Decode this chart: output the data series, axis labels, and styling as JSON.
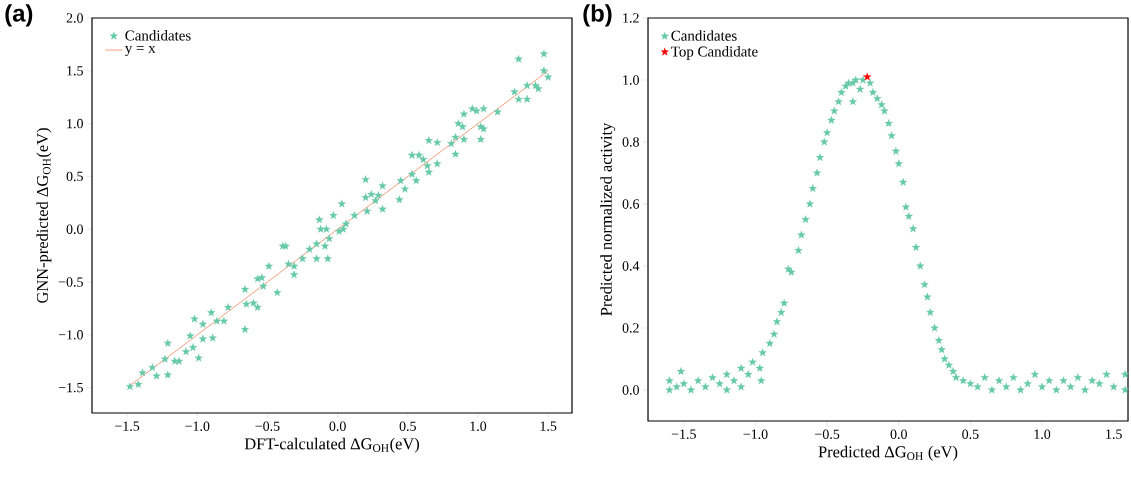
{
  "chart_data": [
    {
      "type": "scatter",
      "annotations": [
        "(a)"
      ],
      "xlabel": "DFT-calculated ΔG$_{OH}$(eV)",
      "ylabel": "GNN-predicted ΔG$_{OH}$(eV)",
      "xlim": [
        -1.75,
        1.67
      ],
      "ylim": [
        -1.74,
        2.0
      ],
      "xticks": [
        {
          "value": -1.5,
          "label": "−1.5"
        },
        {
          "value": -1.0,
          "label": "−1.0"
        },
        {
          "value": -0.5,
          "label": "−0.5"
        },
        {
          "value": 0.0,
          "label": "0.0"
        },
        {
          "value": 0.5,
          "label": "0.5"
        },
        {
          "value": 1.0,
          "label": "1.0"
        },
        {
          "value": 1.5,
          "label": "1.5"
        }
      ],
      "yticks": [
        {
          "value": -1.5,
          "label": "−1.5"
        },
        {
          "value": -1.0,
          "label": "−1.0"
        },
        {
          "value": -0.5,
          "label": "−0.5"
        },
        {
          "value": 0.0,
          "label": "0.0"
        },
        {
          "value": 0.5,
          "label": "0.5"
        },
        {
          "value": 1.0,
          "label": "1.0"
        },
        {
          "value": 1.5,
          "label": "1.5"
        },
        {
          "value": 2.0,
          "label": "2.0"
        }
      ],
      "legend": "top left",
      "marker": "star",
      "series": [
        {
          "name": "Candidates",
          "color": "#66c9a8",
          "x": [
            -1.48,
            -1.42,
            -1.39,
            -1.32,
            -1.29,
            -1.23,
            -1.21,
            -1.21,
            -1.16,
            -1.13,
            -1.08,
            -1.05,
            -1.03,
            -1.02,
            -0.99,
            -0.96,
            -0.96,
            -0.9,
            -0.89,
            -0.86,
            -0.81,
            -0.78,
            -0.66,
            -0.66,
            -0.65,
            -0.6,
            -0.57,
            -0.57,
            -0.53,
            -0.54,
            -0.49,
            -0.43,
            -0.39,
            -0.37,
            -0.35,
            -0.31,
            -0.31,
            -0.25,
            -0.2,
            -0.15,
            -0.15,
            -0.13,
            -0.12,
            -0.08,
            -0.09,
            -0.07,
            -0.06,
            -0.03,
            0.01,
            0.04,
            0.06,
            0.03,
            0.12,
            0.2,
            0.2,
            0.21,
            0.24,
            0.27,
            0.29,
            0.32,
            0.32,
            0.44,
            0.45,
            0.48,
            0.53,
            0.53,
            0.56,
            0.58,
            0.61,
            0.64,
            0.65,
            0.65,
            0.71,
            0.71,
            0.81,
            0.84,
            0.84,
            0.86,
            0.89,
            0.9,
            0.9,
            0.96,
            0.99,
            1.02,
            1.02,
            1.04,
            1.04,
            1.14,
            1.26,
            1.29,
            1.29,
            1.35,
            1.35,
            1.41,
            1.43,
            1.47,
            1.47,
            1.5
          ],
          "values": [
            -1.49,
            -1.47,
            -1.36,
            -1.31,
            -1.39,
            -1.23,
            -1.08,
            -1.38,
            -1.25,
            -1.25,
            -1.16,
            -1.01,
            -1.12,
            -0.85,
            -1.22,
            -1.04,
            -0.9,
            -0.79,
            -1.03,
            -0.87,
            -0.87,
            -0.74,
            -0.57,
            -0.95,
            -0.71,
            -0.7,
            -0.74,
            -0.47,
            -0.54,
            -0.46,
            -0.35,
            -0.6,
            -0.16,
            -0.16,
            -0.33,
            -0.35,
            -0.43,
            -0.28,
            -0.19,
            -0.14,
            -0.28,
            0.09,
            0.0,
            0.0,
            -0.16,
            -0.28,
            -0.09,
            0.13,
            -0.02,
            0.0,
            0.05,
            0.24,
            0.13,
            0.47,
            0.3,
            0.17,
            0.33,
            0.27,
            0.32,
            0.41,
            0.19,
            0.28,
            0.46,
            0.38,
            0.52,
            0.7,
            0.46,
            0.7,
            0.66,
            0.6,
            0.54,
            0.84,
            0.82,
            0.62,
            0.81,
            0.87,
            0.71,
            1.0,
            0.97,
            1.09,
            0.85,
            1.14,
            1.12,
            0.97,
            0.85,
            1.14,
            0.95,
            1.11,
            1.3,
            1.61,
            1.23,
            1.23,
            1.36,
            1.36,
            1.33,
            1.66,
            1.5,
            1.44
          ]
        },
        {
          "name": "y = x",
          "type": "line",
          "marker": "none",
          "color": "#f4a07c",
          "x": [
            -1.48,
            1.5
          ],
          "values": [
            -1.48,
            1.5
          ]
        }
      ]
    },
    {
      "type": "scatter",
      "annotations": [
        "(b)"
      ],
      "xlabel": "Predicted ΔG$_{OH}$ (eV)",
      "ylabel": "Predicted normalized activity",
      "xlim": [
        -1.75,
        1.6
      ],
      "ylim": [
        -0.1,
        1.2
      ],
      "xticks": [
        {
          "value": -1.5,
          "label": "−1.5"
        },
        {
          "value": -1.0,
          "label": "−1.0"
        },
        {
          "value": -0.5,
          "label": "−0.5"
        },
        {
          "value": 0.0,
          "label": "0.0"
        },
        {
          "value": 0.5,
          "label": "0.5"
        },
        {
          "value": 1.0,
          "label": "1.0"
        },
        {
          "value": 1.5,
          "label": "1.5"
        }
      ],
      "yticks": [
        {
          "value": 0.0,
          "label": "0.0"
        },
        {
          "value": 0.2,
          "label": "0.2"
        },
        {
          "value": 0.4,
          "label": "0.4"
        },
        {
          "value": 0.6,
          "label": "0.6"
        },
        {
          "value": 0.8,
          "label": "0.8"
        },
        {
          "value": 1.0,
          "label": "1.0"
        },
        {
          "value": 1.2,
          "label": "1.2"
        }
      ],
      "legend": "top left",
      "marker": "star",
      "series": [
        {
          "name": "Candidates",
          "color": "#66c9a8",
          "x": [
            -1.6,
            -1.6,
            -1.52,
            -1.55,
            -1.5,
            -1.45,
            -1.4,
            -1.35,
            -1.3,
            -1.25,
            -1.2,
            -1.2,
            -1.15,
            -1.1,
            -1.1,
            -1.05,
            -1.02,
            -0.97,
            -0.96,
            -0.95,
            -0.9,
            -0.87,
            -0.85,
            -0.82,
            -0.8,
            -0.77,
            -0.75,
            -0.7,
            -0.68,
            -0.65,
            -0.62,
            -0.6,
            -0.57,
            -0.55,
            -0.52,
            -0.5,
            -0.47,
            -0.45,
            -0.42,
            -0.4,
            -0.37,
            -0.35,
            -0.32,
            -0.32,
            -0.3,
            -0.27,
            -0.25,
            -0.2,
            -0.18,
            -0.15,
            -0.12,
            -0.1,
            -0.07,
            -0.05,
            -0.02,
            0.0,
            0.03,
            0.05,
            0.07,
            0.1,
            0.12,
            0.15,
            0.18,
            0.2,
            0.22,
            0.25,
            0.28,
            0.3,
            0.32,
            0.35,
            0.38,
            0.4,
            0.45,
            0.5,
            0.55,
            0.6,
            0.65,
            0.7,
            0.75,
            0.8,
            0.85,
            0.9,
            0.95,
            1.0,
            1.05,
            1.1,
            1.15,
            1.2,
            1.25,
            1.3,
            1.35,
            1.4,
            1.45,
            1.5,
            1.58,
            1.58
          ],
          "values": [
            0.0,
            0.03,
            0.06,
            0.01,
            0.02,
            0.0,
            0.03,
            0.01,
            0.04,
            0.02,
            0.0,
            0.05,
            0.03,
            0.07,
            0.01,
            0.05,
            0.09,
            0.07,
            0.03,
            0.12,
            0.15,
            0.18,
            0.22,
            0.25,
            0.28,
            0.39,
            0.38,
            0.45,
            0.5,
            0.55,
            0.6,
            0.65,
            0.7,
            0.75,
            0.8,
            0.83,
            0.87,
            0.9,
            0.93,
            0.96,
            0.98,
            0.99,
            0.99,
            0.93,
            1.0,
            0.97,
            1.0,
            0.99,
            0.96,
            0.94,
            0.92,
            0.9,
            0.86,
            0.82,
            0.77,
            0.73,
            0.67,
            0.59,
            0.56,
            0.52,
            0.46,
            0.4,
            0.34,
            0.3,
            0.25,
            0.2,
            0.16,
            0.13,
            0.1,
            0.08,
            0.06,
            0.04,
            0.03,
            0.02,
            0.01,
            0.04,
            0.0,
            0.03,
            0.01,
            0.04,
            0.0,
            0.02,
            0.05,
            0.01,
            0.03,
            0.0,
            0.03,
            0.01,
            0.04,
            0.0,
            0.03,
            0.02,
            0.05,
            0.01,
            0.05,
            0.0
          ]
        },
        {
          "name": "Top Candidate",
          "color": "#ff0000",
          "x": [
            -0.22
          ],
          "values": [
            1.01
          ]
        }
      ]
    }
  ]
}
